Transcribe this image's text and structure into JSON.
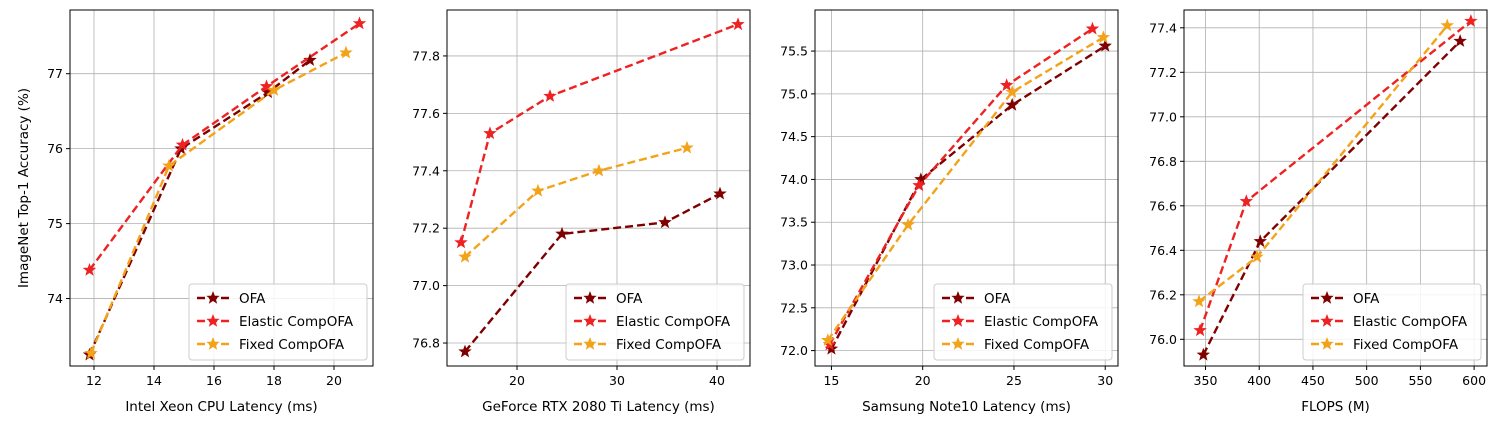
{
  "figure": {
    "ylabel": "ImageNet Top-1 Accuracy (%)"
  },
  "series_styles": [
    {
      "name": "OFA",
      "color": "#800000"
    },
    {
      "name": "Elastic CompOFA",
      "color": "#ee2222"
    },
    {
      "name": "Fixed CompOFA",
      "color": "#f2a31a"
    }
  ],
  "chart_data": [
    {
      "type": "line",
      "title": "",
      "xlabel": "Intel Xeon CPU Latency (ms)",
      "ylabel": "ImageNet Top-1 Accuracy (%)",
      "xlim": [
        11.2,
        21.3
      ],
      "ylim": [
        73.1,
        77.85
      ],
      "xticks": [
        12,
        14,
        16,
        18,
        20
      ],
      "yticks": [
        74,
        75,
        76,
        77
      ],
      "legend": "lower-right",
      "series": [
        {
          "name": "OFA",
          "x": [
            11.85,
            14.9,
            17.8,
            19.2
          ],
          "y": [
            73.25,
            76.0,
            76.75,
            77.18
          ]
        },
        {
          "name": "Elastic CompOFA",
          "x": [
            11.85,
            14.95,
            17.75,
            20.85
          ],
          "y": [
            74.38,
            76.05,
            76.83,
            77.67
          ]
        },
        {
          "name": "Fixed CompOFA",
          "x": [
            11.9,
            14.5,
            18.0,
            20.4
          ],
          "y": [
            73.27,
            75.77,
            76.78,
            77.28
          ]
        }
      ]
    },
    {
      "type": "line",
      "title": "",
      "xlabel": "GeForce RTX 2080 Ti Latency (ms)",
      "ylabel": "",
      "xlim": [
        13.0,
        43.3
      ],
      "ylim": [
        76.72,
        77.96
      ],
      "xticks": [
        20,
        30,
        40
      ],
      "yticks": [
        76.8,
        77.0,
        77.2,
        77.4,
        77.6,
        77.8
      ],
      "legend": "lower-right",
      "series": [
        {
          "name": "OFA",
          "x": [
            14.8,
            24.5,
            34.8,
            40.3
          ],
          "y": [
            76.77,
            77.18,
            77.22,
            77.32
          ]
        },
        {
          "name": "Elastic CompOFA",
          "x": [
            14.4,
            17.3,
            23.3,
            42.1
          ],
          "y": [
            77.15,
            77.53,
            77.66,
            77.91
          ]
        },
        {
          "name": "Fixed CompOFA",
          "x": [
            14.8,
            22.1,
            28.2,
            37.0
          ],
          "y": [
            77.1,
            77.33,
            77.4,
            77.48
          ]
        }
      ]
    },
    {
      "type": "line",
      "title": "",
      "xlabel": "Samsung Note10 Latency (ms)",
      "ylabel": "",
      "xlim": [
        14.1,
        30.7
      ],
      "ylim": [
        71.82,
        75.98
      ],
      "xticks": [
        15,
        20,
        25,
        30
      ],
      "yticks": [
        72.0,
        72.5,
        73.0,
        73.5,
        74.0,
        74.5,
        75.0,
        75.5
      ],
      "legend": "lower-right",
      "series": [
        {
          "name": "OFA",
          "x": [
            15.0,
            19.9,
            24.9,
            30.0
          ],
          "y": [
            72.02,
            74.0,
            74.87,
            75.56
          ]
        },
        {
          "name": "Elastic CompOFA",
          "x": [
            14.9,
            19.8,
            24.6,
            29.3
          ],
          "y": [
            72.07,
            73.93,
            75.1,
            75.76
          ]
        },
        {
          "name": "Fixed CompOFA",
          "x": [
            14.8,
            19.2,
            24.9,
            29.9
          ],
          "y": [
            72.12,
            73.47,
            75.02,
            75.66
          ]
        }
      ]
    },
    {
      "type": "line",
      "title": "",
      "xlabel": "FLOPS (M)",
      "ylabel": "",
      "xlim": [
        330,
        612
      ],
      "ylim": [
        75.88,
        77.48
      ],
      "xticks": [
        350,
        400,
        450,
        500,
        550,
        600
      ],
      "yticks": [
        76.0,
        76.2,
        76.4,
        76.6,
        76.8,
        77.0,
        77.2,
        77.4
      ],
      "legend": "lower-right",
      "series": [
        {
          "name": "OFA",
          "x": [
            348,
            401,
            587
          ],
          "y": [
            75.93,
            76.44,
            77.34
          ]
        },
        {
          "name": "Elastic CompOFA",
          "x": [
            345,
            388,
            597
          ],
          "y": [
            76.04,
            76.62,
            77.43
          ]
        },
        {
          "name": "Fixed CompOFA",
          "x": [
            344,
            398,
            575
          ],
          "y": [
            76.17,
            76.37,
            77.41
          ]
        }
      ]
    }
  ]
}
